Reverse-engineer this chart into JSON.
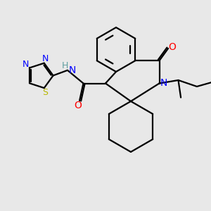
{
  "bg_color": "#e8e8e8",
  "bond_color": "#000000",
  "N_color": "#0000ff",
  "O_color": "#ff0000",
  "S_color": "#b8b800",
  "NH_color": "#5f9ea0",
  "line_width": 1.6,
  "font_size_large": 10,
  "font_size_small": 9,
  "xlim": [
    0,
    10
  ],
  "ylim": [
    0,
    10
  ]
}
